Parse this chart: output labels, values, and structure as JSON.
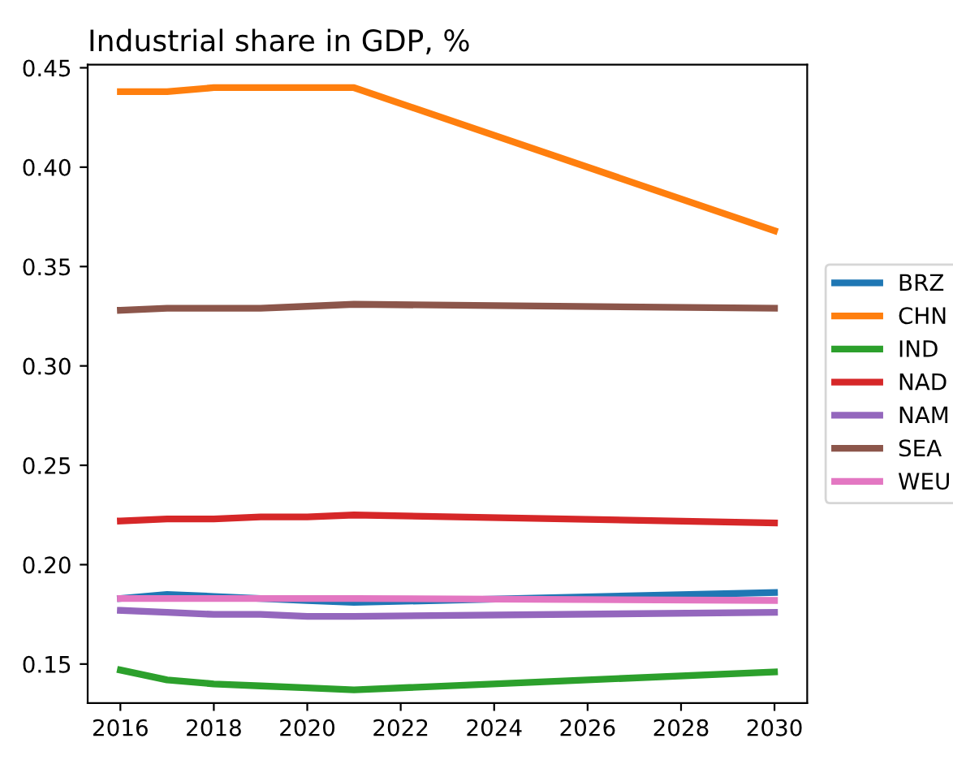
{
  "chart_data": {
    "type": "line",
    "title": "Industrial share in GDP, %",
    "x": [
      2016,
      2017,
      2018,
      2019,
      2020,
      2021,
      2030
    ],
    "series": [
      {
        "name": "BRZ",
        "color": "#1f77b4",
        "values": [
          0.183,
          0.185,
          0.184,
          0.183,
          0.182,
          0.181,
          0.186
        ]
      },
      {
        "name": "CHN",
        "color": "#ff7f0e",
        "values": [
          0.438,
          0.438,
          0.44,
          0.44,
          0.44,
          0.44,
          0.368
        ]
      },
      {
        "name": "IND",
        "color": "#2ca02c",
        "values": [
          0.147,
          0.142,
          0.14,
          0.139,
          0.138,
          0.137,
          0.146
        ]
      },
      {
        "name": "NAD",
        "color": "#d62728",
        "values": [
          0.222,
          0.223,
          0.223,
          0.224,
          0.224,
          0.225,
          0.221
        ]
      },
      {
        "name": "NAM",
        "color": "#9467bd",
        "values": [
          0.177,
          0.176,
          0.175,
          0.175,
          0.174,
          0.174,
          0.176
        ]
      },
      {
        "name": "SEA",
        "color": "#8c564b",
        "values": [
          0.328,
          0.329,
          0.329,
          0.329,
          0.33,
          0.331,
          0.329
        ]
      },
      {
        "name": "WEU",
        "color": "#e377c2",
        "values": [
          0.183,
          0.183,
          0.183,
          0.183,
          0.183,
          0.183,
          0.182
        ]
      }
    ],
    "xlim": [
      2015.3,
      2030.7
    ],
    "xticks": [
      2016,
      2018,
      2020,
      2022,
      2024,
      2026,
      2028,
      2030
    ],
    "ylim": [
      0.1304,
      0.4516
    ],
    "yticks": [
      {
        "value": 0.15,
        "label": "0.15"
      },
      {
        "value": 0.2,
        "label": "0.20"
      },
      {
        "value": 0.25,
        "label": "0.25"
      },
      {
        "value": 0.3,
        "label": "0.30"
      },
      {
        "value": 0.35,
        "label": "0.35"
      },
      {
        "value": 0.4,
        "label": "0.40"
      },
      {
        "value": 0.45,
        "label": "0.45"
      }
    ],
    "legend": "right",
    "grid": false,
    "line_style": "solid",
    "marker": "none"
  }
}
